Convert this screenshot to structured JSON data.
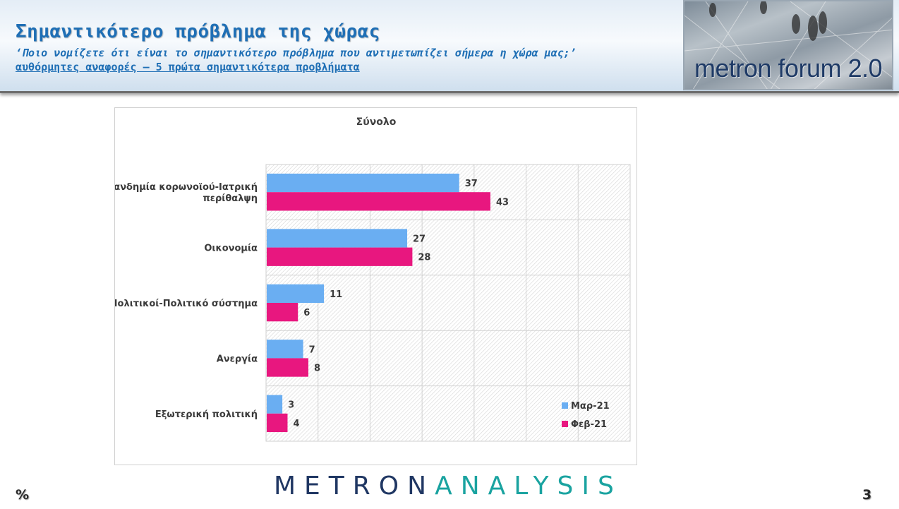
{
  "header": {
    "title": "Σημαντικότερο πρόβλημα της χώρας",
    "subtitle": "‘Ποιο νομίζετε ότι  είναι το σημαντικότερο πρόβλημα που αντιμετωπίζει σήμερα η χώρα μας;’",
    "subtitle2": "αυθόρμητες αναφορές – 5 πρώτα σημαντικότερα προβλήματα",
    "logo_text": "metron forum 2.0"
  },
  "footer": {
    "brand_left": "METRON",
    "brand_right": "ANALYSIS",
    "percent_label": "%",
    "page_number": "3"
  },
  "colors": {
    "series_mar": "#6aaef2",
    "series_feb": "#e8177f",
    "title_blue": "#1f6fb5"
  },
  "chart_data": {
    "type": "bar",
    "orientation": "horizontal",
    "title": "Σύνολο",
    "categories": [
      [
        "Πανδημία κορωνοϊού-Ιατρική",
        "περίθαλψη"
      ],
      [
        "Οικονομία"
      ],
      [
        "Πολιτικοί-Πολιτικό σύστημα"
      ],
      [
        "Ανεργία"
      ],
      [
        "Εξωτερική πολιτική"
      ]
    ],
    "series": [
      {
        "name": "Μαρ-21",
        "values": [
          37,
          27,
          11,
          7,
          3
        ],
        "color": "#6aaef2"
      },
      {
        "name": "Φεβ-21",
        "values": [
          43,
          28,
          6,
          8,
          4
        ],
        "color": "#e8177f"
      }
    ],
    "xlim": [
      0,
      70
    ],
    "grid": true,
    "legend": "bottom-right"
  }
}
